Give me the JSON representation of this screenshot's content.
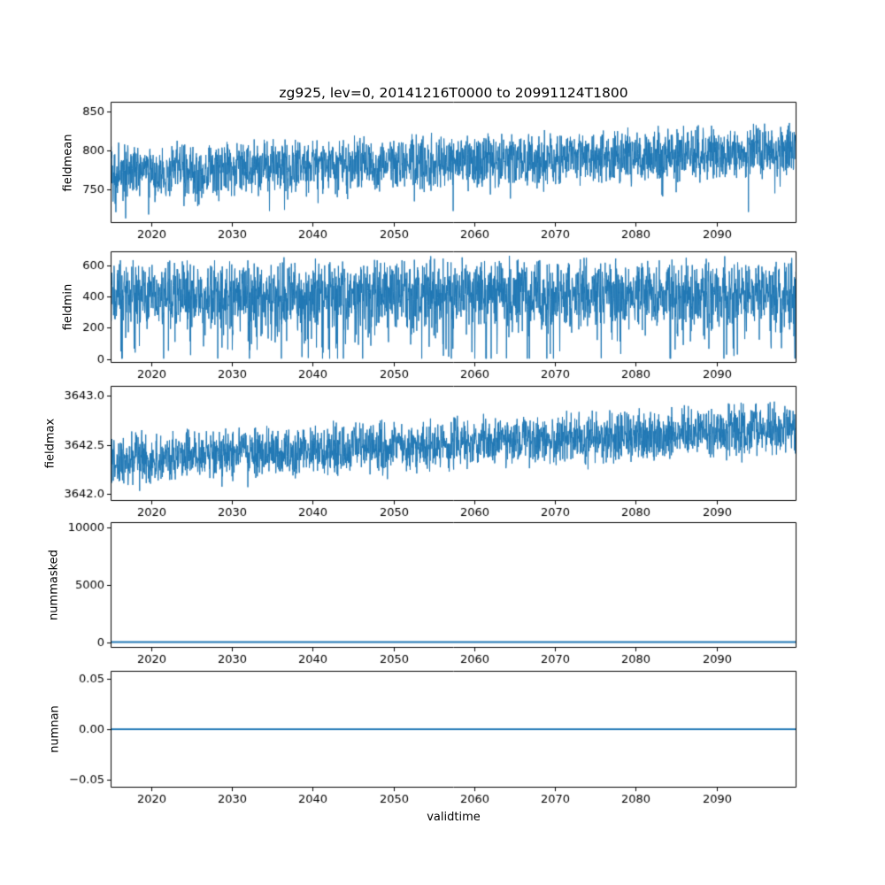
{
  "figure": {
    "title": "zg925, lev=0, 20141216T0000 to 20991124T1800",
    "xlabel": "validtime",
    "line_color": "#1f77b4",
    "axis_color": "#000000",
    "xticks": [
      {
        "v": 2020,
        "label": "2020"
      },
      {
        "v": 2030,
        "label": "2030"
      },
      {
        "v": 2040,
        "label": "2040"
      },
      {
        "v": 2050,
        "label": "2050"
      },
      {
        "v": 2060,
        "label": "2060"
      },
      {
        "v": 2070,
        "label": "2070"
      },
      {
        "v": 2080,
        "label": "2080"
      },
      {
        "v": 2090,
        "label": "2090"
      }
    ]
  },
  "chart_data": [
    {
      "type": "line",
      "ylabel": "fieldmean",
      "x_range": [
        2014.96,
        2099.9
      ],
      "ylim": [
        706,
        863
      ],
      "yticks": [
        {
          "v": 750,
          "label": "750"
        },
        {
          "v": 800,
          "label": "800"
        },
        {
          "v": 850,
          "label": "850"
        }
      ],
      "series": {
        "name": "fieldmean",
        "seed": 1,
        "gen": {
          "n": 2600,
          "base0": 772,
          "base1": 800,
          "amp": 40,
          "spike_p": 0.05,
          "spike_amp": -45,
          "clamp": [
            712,
            858
          ],
          "lw": 1
        }
      }
    },
    {
      "type": "line",
      "ylabel": "fieldmin",
      "x_range": [
        2014.96,
        2099.9
      ],
      "ylim": [
        -25,
        688
      ],
      "yticks": [
        {
          "v": 0,
          "label": "0"
        },
        {
          "v": 200,
          "label": "200"
        },
        {
          "v": 400,
          "label": "400"
        },
        {
          "v": 600,
          "label": "600"
        }
      ],
      "series": {
        "name": "fieldmin",
        "seed": 2,
        "gen": {
          "n": 2600,
          "base0": 420,
          "base1": 420,
          "amp": 250,
          "spike_p": 0.12,
          "spike_amp": -380,
          "clamp": [
            2,
            668
          ],
          "lw": 1
        }
      }
    },
    {
      "type": "line",
      "ylabel": "fieldmax",
      "x_range": [
        2014.96,
        2099.9
      ],
      "ylim": [
        3641.93,
        3643.1
      ],
      "yticks": [
        {
          "v": 3642.0,
          "label": "3642.0"
        },
        {
          "v": 3642.5,
          "label": "3642.5"
        },
        {
          "v": 3643.0,
          "label": "3643.0"
        }
      ],
      "series": {
        "name": "fieldmax",
        "seed": 3,
        "gen": {
          "n": 2600,
          "base0": 3642.35,
          "base1": 3642.68,
          "amp": 0.3,
          "spike_p": 0.04,
          "spike_amp": -0.2,
          "clamp": [
            3641.97,
            3643.07
          ],
          "lw": 1
        }
      }
    },
    {
      "type": "line",
      "ylabel": "nummasked",
      "x_range": [
        2014.96,
        2099.9
      ],
      "ylim": [
        -500,
        10500
      ],
      "yticks": [
        {
          "v": 0,
          "label": "0"
        },
        {
          "v": 5000,
          "label": "5000"
        },
        {
          "v": 10000,
          "label": "10000"
        }
      ],
      "series": {
        "name": "nummasked",
        "seed": 4,
        "gen": {
          "n": 2,
          "base0": 0,
          "base1": 0,
          "amp": 0,
          "spike_p": 0,
          "spike_amp": 0,
          "clamp": [
            -500,
            10500
          ],
          "lw": 2
        }
      }
    },
    {
      "type": "line",
      "ylabel": "numnan",
      "x_range": [
        2014.96,
        2099.9
      ],
      "ylim": [
        -0.058,
        0.058
      ],
      "yticks": [
        {
          "v": -0.05,
          "label": "−0.05"
        },
        {
          "v": 0.0,
          "label": "0.00"
        },
        {
          "v": 0.05,
          "label": "0.05"
        }
      ],
      "series": {
        "name": "numnan",
        "seed": 5,
        "gen": {
          "n": 2,
          "base0": 0,
          "base1": 0,
          "amp": 0,
          "spike_p": 0,
          "spike_amp": 0,
          "clamp": [
            -0.058,
            0.058
          ],
          "lw": 1.8
        }
      }
    }
  ]
}
